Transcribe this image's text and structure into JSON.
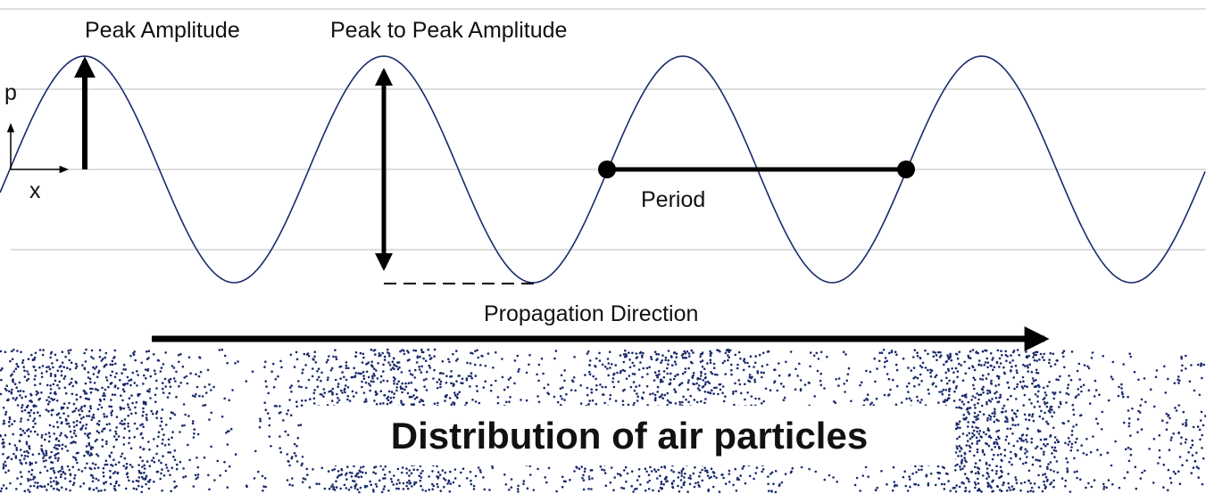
{
  "labels": {
    "peak_amplitude": "Peak Amplitude",
    "peak_to_peak": "Peak to Peak Amplitude",
    "y_axis": "p",
    "x_axis": "x",
    "period": "Period",
    "propagation": "Propagation Direction"
  },
  "title": "Distribution of air particles"
}
